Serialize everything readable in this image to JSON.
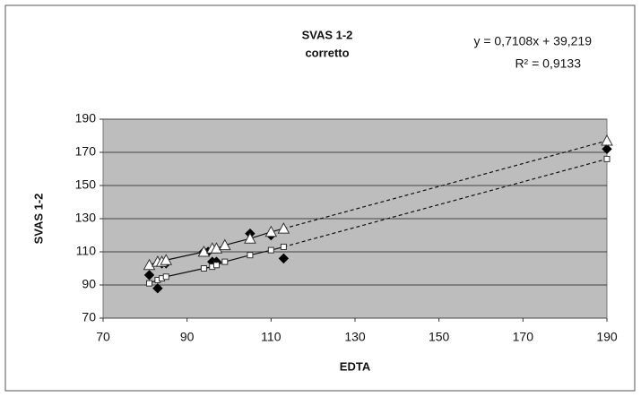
{
  "chart_data": {
    "type": "scatter",
    "title": "SVAS 1-2",
    "subtitle": "corretto",
    "annotations": [
      "y = 0,7108x + 39,219",
      "R² = 0,9133"
    ],
    "xlabel": "EDTA",
    "ylabel": "SVAS 1-2",
    "xlim": [
      70,
      190
    ],
    "xticks": [
      70,
      90,
      110,
      130,
      150,
      170,
      190
    ],
    "ylim": [
      70,
      190
    ],
    "yticks": [
      70,
      90,
      110,
      130,
      150,
      170,
      190
    ],
    "grid": true,
    "series": [
      {
        "marker": "diamond",
        "color": "#000000",
        "x": [
          81,
          83,
          84,
          85,
          94,
          95,
          96,
          97,
          105,
          110,
          113,
          190
        ],
        "values": [
          96,
          88,
          103,
          103,
          110,
          110,
          104,
          104,
          121,
          120,
          106,
          172
        ]
      },
      {
        "marker": "triangle",
        "color": "#ffffff",
        "line": true,
        "x": [
          81,
          83,
          84,
          85,
          94,
          96,
          97,
          99,
          105,
          110,
          113,
          190
        ],
        "values": [
          102,
          104,
          104,
          105,
          110,
          112,
          112,
          114,
          118,
          122,
          124,
          177
        ]
      },
      {
        "marker": "square",
        "color": "#ffffff",
        "line": true,
        "x": [
          81,
          83,
          84,
          85,
          94,
          96,
          97,
          99,
          105,
          110,
          113,
          190
        ],
        "values": [
          91,
          93,
          94,
          95,
          100,
          101,
          102,
          104,
          108,
          111,
          113,
          166
        ]
      }
    ]
  }
}
